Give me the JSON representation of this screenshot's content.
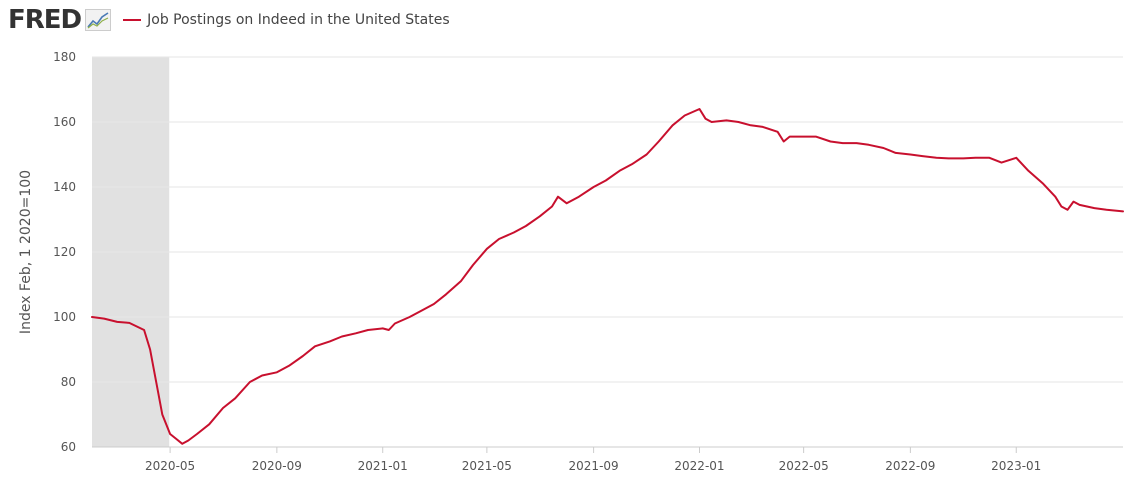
{
  "header": {
    "logo_text": "FRED",
    "logo_icon": "line-chart-icon"
  },
  "chart_data": {
    "type": "line",
    "title": "",
    "xlabel": "",
    "ylabel": "Index Feb, 1 2020=100",
    "ylim": [
      60,
      180
    ],
    "yticks": [
      60,
      80,
      100,
      120,
      140,
      160,
      180
    ],
    "xlim": [
      "2020-02-01",
      "2023-05-04"
    ],
    "xticks": [
      "2020-05",
      "2020-09",
      "2021-01",
      "2021-05",
      "2021-09",
      "2022-01",
      "2022-05",
      "2022-09",
      "2023-01"
    ],
    "grid": true,
    "legend_position": "top-left",
    "recession_shading": [
      "2020-02-01",
      "2020-04-30"
    ],
    "series": [
      {
        "name": "Job Postings on Indeed in the United States",
        "color": "#c8102e",
        "x": [
          "2020-02-01",
          "2020-02-15",
          "2020-03-01",
          "2020-03-15",
          "2020-04-01",
          "2020-04-08",
          "2020-04-15",
          "2020-04-22",
          "2020-05-01",
          "2020-05-08",
          "2020-05-15",
          "2020-05-22",
          "2020-06-01",
          "2020-06-15",
          "2020-07-01",
          "2020-07-15",
          "2020-08-01",
          "2020-08-15",
          "2020-09-01",
          "2020-09-15",
          "2020-10-01",
          "2020-10-15",
          "2020-11-01",
          "2020-11-15",
          "2020-12-01",
          "2020-12-15",
          "2021-01-01",
          "2021-01-08",
          "2021-01-15",
          "2021-02-01",
          "2021-02-15",
          "2021-03-01",
          "2021-03-15",
          "2021-04-01",
          "2021-04-15",
          "2021-05-01",
          "2021-05-15",
          "2021-06-01",
          "2021-06-15",
          "2021-07-01",
          "2021-07-15",
          "2021-07-22",
          "2021-08-01",
          "2021-08-15",
          "2021-09-01",
          "2021-09-15",
          "2021-10-01",
          "2021-10-15",
          "2021-11-01",
          "2021-11-15",
          "2021-12-01",
          "2021-12-15",
          "2022-01-01",
          "2022-01-08",
          "2022-01-15",
          "2022-02-01",
          "2022-02-15",
          "2022-03-01",
          "2022-03-15",
          "2022-04-01",
          "2022-04-08",
          "2022-04-15",
          "2022-05-01",
          "2022-05-15",
          "2022-06-01",
          "2022-06-15",
          "2022-07-01",
          "2022-07-15",
          "2022-08-01",
          "2022-08-15",
          "2022-09-01",
          "2022-09-15",
          "2022-10-01",
          "2022-10-15",
          "2022-11-01",
          "2022-11-15",
          "2022-12-01",
          "2022-12-15",
          "2023-01-01",
          "2023-01-15",
          "2023-02-01",
          "2023-02-15",
          "2023-02-22",
          "2023-03-01",
          "2023-03-08",
          "2023-03-15",
          "2023-04-01",
          "2023-04-15",
          "2023-05-04"
        ],
        "values": [
          100,
          99.5,
          98.5,
          98.2,
          96,
          90,
          80,
          70,
          64,
          62.5,
          61,
          62,
          64,
          67,
          72,
          75,
          80,
          82,
          83,
          85,
          88,
          91,
          92.5,
          94,
          95,
          96,
          96.5,
          96,
          98,
          100,
          102,
          104,
          107,
          111,
          116,
          121,
          124,
          126,
          128,
          131,
          134,
          137,
          135,
          137,
          140,
          142,
          145,
          147,
          150,
          154,
          159,
          162,
          164,
          161,
          160,
          160.5,
          160,
          159,
          158.5,
          157,
          154,
          155.5,
          155.5,
          155.5,
          154,
          153.5,
          153.5,
          153,
          152,
          150.5,
          150,
          149.5,
          149,
          148.8,
          148.8,
          149,
          149,
          147.5,
          149,
          145,
          141,
          137,
          134,
          133,
          135.5,
          134.5,
          133.5,
          133,
          132.5
        ]
      }
    ]
  }
}
